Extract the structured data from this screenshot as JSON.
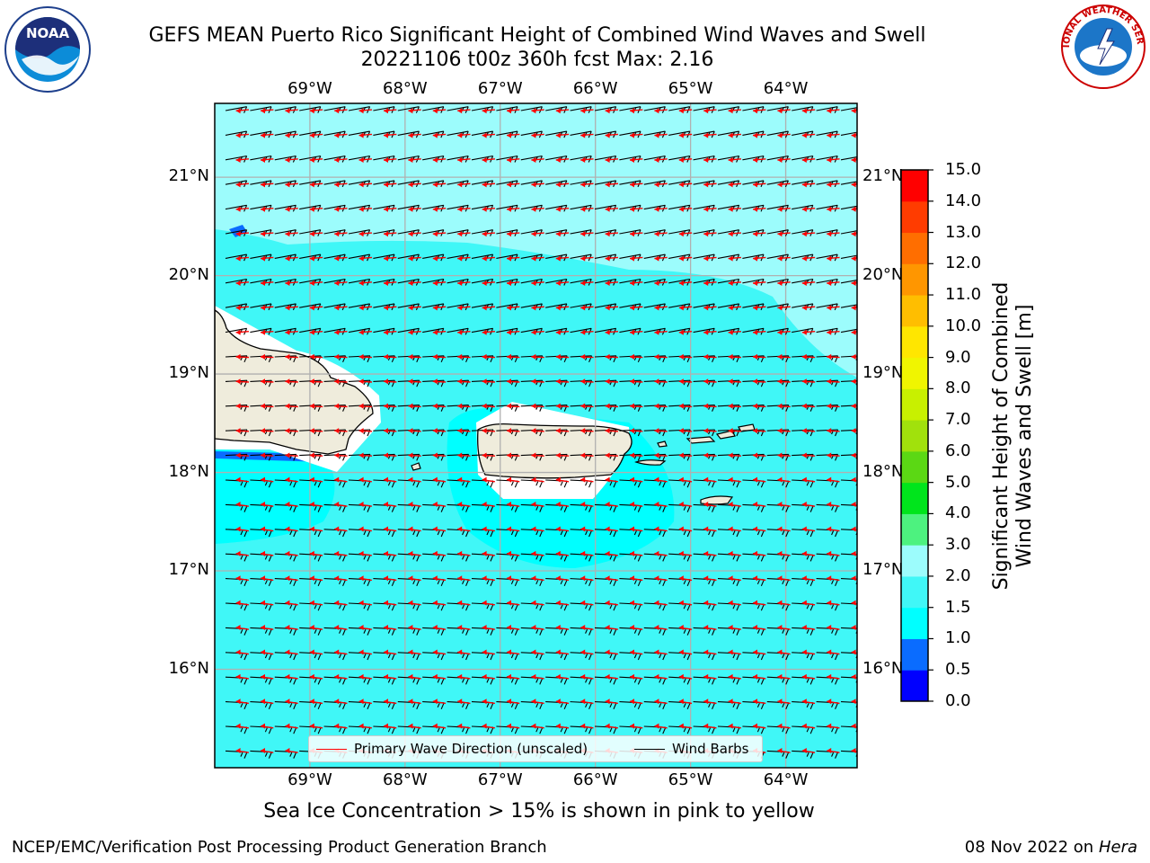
{
  "header": {
    "title_line1": "GEFS MEAN Puerto Rico Significant Height of Combined Wind Waves and Swell",
    "title_line2": "20221106 t00z 360h fcst   Max: 2.16"
  },
  "map": {
    "lon_ticks": [
      "69°W",
      "68°W",
      "67°W",
      "66°W",
      "65°W",
      "64°W"
    ],
    "lat_ticks": [
      "21°N",
      "20°N",
      "19°N",
      "18°N",
      "17°N",
      "16°N"
    ],
    "lon_range": [
      -70.0,
      -63.25
    ],
    "lat_range": [
      15.0,
      21.75
    ],
    "land_color": "#efecdc",
    "grid_color": "#b0b0b0",
    "wave_arrow_color": "#ff0000",
    "wind_barb_color": "#000000"
  },
  "colorbar": {
    "label": "Significant Height of Combined\nWind Waves and Swell [m]",
    "levels": [
      "0.0",
      "0.5",
      "1.0",
      "1.5",
      "2.0",
      "3.0",
      "4.0",
      "5.0",
      "6.0",
      "7.0",
      "8.0",
      "9.0",
      "10.0",
      "11.0",
      "12.0",
      "13.0",
      "14.0",
      "15.0"
    ],
    "colors": [
      "#0000ff",
      "#0a6cff",
      "#00ffff",
      "#40f7f7",
      "#9cfcfc",
      "#4df27f",
      "#00e51c",
      "#5bd814",
      "#a1e10c",
      "#c8f000",
      "#f0f500",
      "#ffe600",
      "#ffbe00",
      "#ff9600",
      "#ff6e00",
      "#ff3c00",
      "#ff0000"
    ]
  },
  "legend": {
    "wave_label": "Primary Wave Direction (unscaled)",
    "wind_label": "Wind Barbs"
  },
  "footer": {
    "note": "Sea Ice Concentration > 15% is shown in pink to yellow",
    "org": "NCEP/EMC/Verification Post Processing Product Generation Branch",
    "date": "08 Nov 2022 on",
    "host": "Hera"
  },
  "logos": {
    "left": "NOAA",
    "right": "NATIONAL WEATHER SERVICE"
  }
}
